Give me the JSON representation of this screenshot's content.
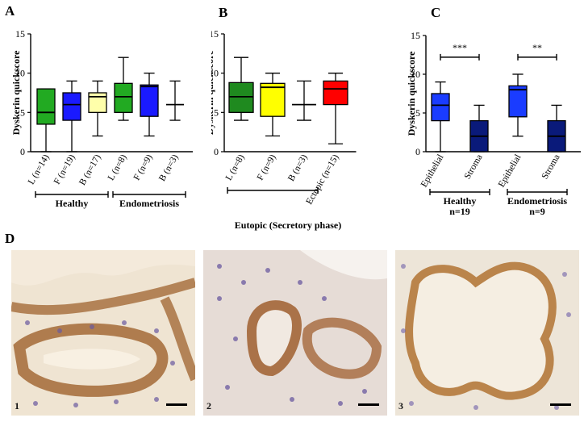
{
  "panels": {
    "A": "A",
    "B": "B",
    "C": "C",
    "D": "D"
  },
  "chart_data": [
    {
      "type": "box",
      "panel": "A",
      "ylabel": "Dyskerin quickscore",
      "ylim": [
        0,
        15
      ],
      "yticks": [
        0,
        5,
        10,
        15
      ],
      "categories": [
        "L (n=14)",
        "F (n=19)",
        "B (n=17)",
        "L (n=8)",
        "F (n=9)",
        "B (n=3)"
      ],
      "colors": [
        "#22aa22",
        "#1a1aff",
        "#ffffaa",
        "#22aa22",
        "#1a1aff",
        "#ffffff"
      ],
      "boxes": [
        {
          "min": 0,
          "q1": 3.5,
          "median": 5,
          "q3": 8,
          "max": 8
        },
        {
          "min": 0,
          "q1": 4,
          "median": 6,
          "q3": 7.5,
          "max": 9
        },
        {
          "min": 2,
          "q1": 5,
          "median": 7,
          "q3": 7.5,
          "max": 9
        },
        {
          "min": 4,
          "q1": 5,
          "median": 7,
          "q3": 8.7,
          "max": 12
        },
        {
          "min": 2,
          "q1": 4.5,
          "median": 8.3,
          "q3": 8.5,
          "max": 10
        },
        {
          "min": 4,
          "q1": 6,
          "median": 6,
          "q3": 6,
          "max": 9
        }
      ],
      "groups": [
        {
          "label": "Healthy",
          "from": 0,
          "to": 2
        },
        {
          "label": "Endometriosis",
          "from": 3,
          "to": 5
        }
      ]
    },
    {
      "type": "box",
      "panel": "B",
      "ylabel": "Dyskerin quickscore",
      "ylim": [
        0,
        15
      ],
      "yticks": [
        0,
        5,
        10,
        15
      ],
      "categories": [
        "L (n=8)",
        "F (n=9)",
        "B (n=3)",
        "Ectopic (n=15)"
      ],
      "colors": [
        "#1f8a1f",
        "#ffff00",
        "#ffffff",
        "#ff0000"
      ],
      "boxes": [
        {
          "min": 4,
          "q1": 5,
          "median": 7,
          "q3": 8.8,
          "max": 12
        },
        {
          "min": 2,
          "q1": 4.5,
          "median": 8.2,
          "q3": 8.7,
          "max": 10
        },
        {
          "min": 4,
          "q1": 6,
          "median": 6,
          "q3": 6,
          "max": 9
        },
        {
          "min": 1,
          "q1": 6,
          "median": 8,
          "q3": 9,
          "max": 10
        }
      ],
      "groups": [
        {
          "label": "",
          "from": 0,
          "to": 2
        }
      ],
      "xtitle": "Eutopic (Secretory phase)"
    },
    {
      "type": "box",
      "panel": "C",
      "ylabel": "Dyskerin quickscore",
      "ylim": [
        0,
        15
      ],
      "yticks": [
        0,
        5,
        10,
        15
      ],
      "categories": [
        "Epithelial",
        "Stroma",
        "Epithelial",
        "Stroma"
      ],
      "colors": [
        "#1a3cff",
        "#0a1a7a",
        "#1a3cff",
        "#0a1a7a"
      ],
      "boxes": [
        {
          "min": 0,
          "q1": 4,
          "median": 6,
          "q3": 7.5,
          "max": 9
        },
        {
          "min": 0,
          "q1": 0,
          "median": 2,
          "q3": 4,
          "max": 6
        },
        {
          "min": 2,
          "q1": 4.5,
          "median": 8,
          "q3": 8.5,
          "max": 10
        },
        {
          "min": 0,
          "q1": 0,
          "median": 2,
          "q3": 4,
          "max": 6
        }
      ],
      "significance": [
        {
          "from": 0,
          "to": 1,
          "label": "***",
          "y": 12.2
        },
        {
          "from": 2,
          "to": 3,
          "label": "**",
          "y": 12.2
        }
      ],
      "groups": [
        {
          "label": "Healthy",
          "sub": "n=19",
          "from": 0,
          "to": 1
        },
        {
          "label": "Endometriosis",
          "sub": "n=9",
          "from": 2,
          "to": 3
        }
      ]
    }
  ],
  "micrographs": [
    {
      "number": "1"
    },
    {
      "number": "2"
    },
    {
      "number": "3"
    }
  ]
}
